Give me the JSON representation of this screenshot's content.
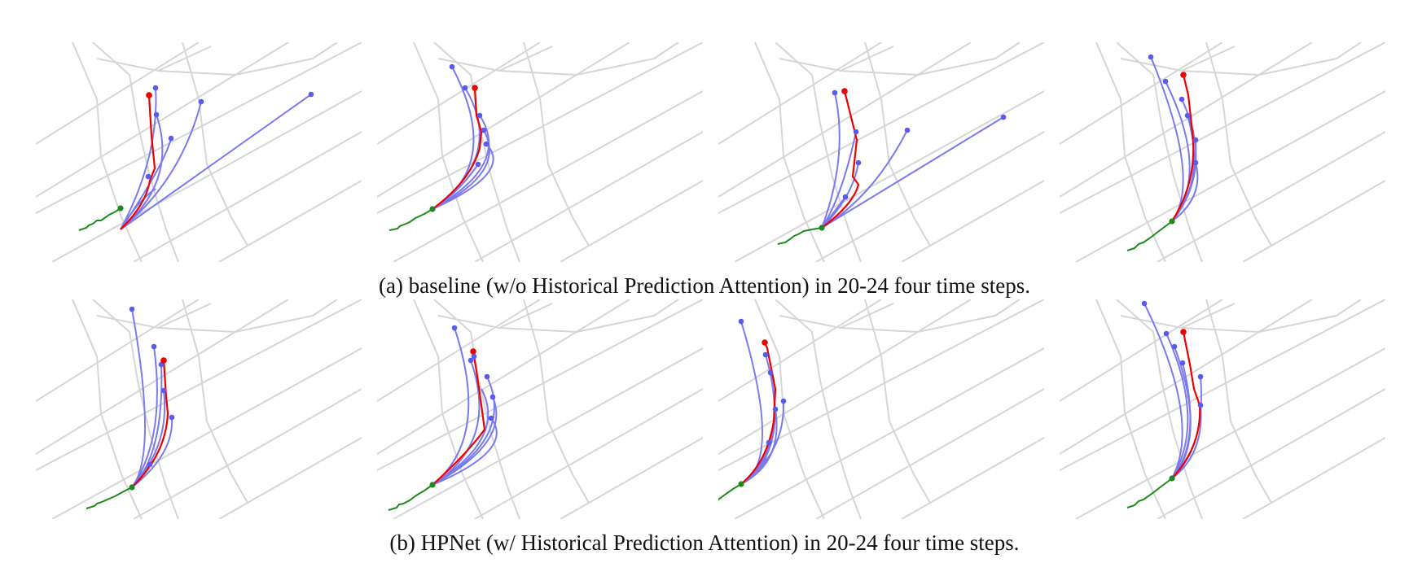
{
  "captions": {
    "a": "(a) baseline (w/o Historical Prediction Attention) in 20-24 four time steps.",
    "b": "(b) HPNet (w/ Historical Prediction Attention) in 20-24 four time steps."
  },
  "colors": {
    "map": "#d6d6d6",
    "history": "#1e8a1e",
    "ground_truth": "#ee0000",
    "prediction": "#5555ee"
  }
}
